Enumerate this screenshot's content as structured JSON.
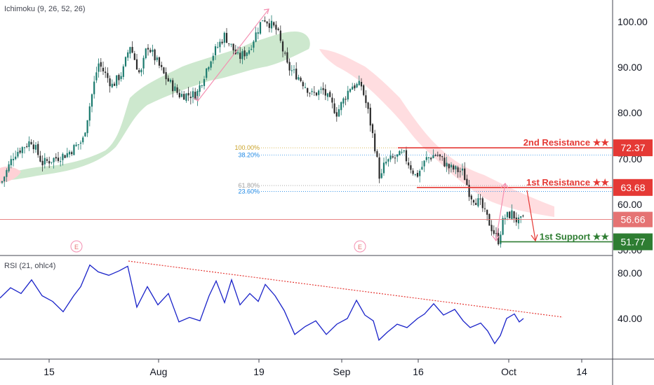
{
  "chart_data": [
    {
      "type": "candlestick",
      "pane": "price",
      "indicator_label": "Ichimoku (9, 26, 52, 26)",
      "yaxis": {
        "ticks": [
          "100.00",
          "90.00",
          "80.00",
          "70.00",
          "60.00",
          "50.00"
        ],
        "range": [
          50,
          104
        ]
      },
      "xaxis": {
        "ticks": [
          "15",
          "Aug",
          "19",
          "Sep",
          "16",
          "Oct",
          "14"
        ]
      },
      "anchors": [
        {
          "x": 0,
          "y": 64
        },
        {
          "x": 20,
          "y": 71
        },
        {
          "x": 45,
          "y": 74
        },
        {
          "x": 60,
          "y": 69
        },
        {
          "x": 95,
          "y": 71
        },
        {
          "x": 118,
          "y": 74
        },
        {
          "x": 140,
          "y": 91
        },
        {
          "x": 160,
          "y": 86
        },
        {
          "x": 175,
          "y": 89
        },
        {
          "x": 185,
          "y": 95
        },
        {
          "x": 200,
          "y": 88
        },
        {
          "x": 210,
          "y": 95
        },
        {
          "x": 235,
          "y": 88
        },
        {
          "x": 255,
          "y": 84
        },
        {
          "x": 280,
          "y": 84
        },
        {
          "x": 300,
          "y": 92
        },
        {
          "x": 320,
          "y": 97
        },
        {
          "x": 340,
          "y": 92
        },
        {
          "x": 355,
          "y": 94
        },
        {
          "x": 375,
          "y": 101
        },
        {
          "x": 395,
          "y": 98
        },
        {
          "x": 410,
          "y": 90
        },
        {
          "x": 425,
          "y": 88
        },
        {
          "x": 445,
          "y": 84
        },
        {
          "x": 460,
          "y": 85
        },
        {
          "x": 480,
          "y": 80
        },
        {
          "x": 500,
          "y": 86
        },
        {
          "x": 515,
          "y": 86
        },
        {
          "x": 525,
          "y": 80
        },
        {
          "x": 535,
          "y": 72
        },
        {
          "x": 542,
          "y": 65
        },
        {
          "x": 548,
          "y": 69
        },
        {
          "x": 560,
          "y": 70
        },
        {
          "x": 575,
          "y": 71
        },
        {
          "x": 593,
          "y": 66
        },
        {
          "x": 608,
          "y": 70
        },
        {
          "x": 622,
          "y": 71
        },
        {
          "x": 640,
          "y": 68
        },
        {
          "x": 660,
          "y": 67
        },
        {
          "x": 670,
          "y": 62
        },
        {
          "x": 685,
          "y": 60
        },
        {
          "x": 700,
          "y": 55
        },
        {
          "x": 710,
          "y": 52
        },
        {
          "x": 718,
          "y": 57
        },
        {
          "x": 730,
          "y": 58
        },
        {
          "x": 738,
          "y": 56
        },
        {
          "x": 746,
          "y": 56.6
        }
      ],
      "levels": [
        {
          "label": "2nd Resistance ★★",
          "value": "72.37",
          "color": "#e53935"
        },
        {
          "label": "1st Resistance ★★",
          "value": "63.68",
          "color": "#e53935"
        },
        {
          "label": "1st Support ★★",
          "value": "51.77",
          "color": "#2e7d32"
        }
      ],
      "current_price": {
        "value": "56.66",
        "color": "#e57373"
      },
      "fibonacci": [
        {
          "label": "100.00%",
          "value": 72.37,
          "color": "#c9a227"
        },
        {
          "label": "38.20%",
          "value": 70.8,
          "color": "#1e88e5"
        },
        {
          "label": "61.80%",
          "value": 64.1,
          "color": "#9e9e9e"
        },
        {
          "label": "23.60%",
          "value": 62.8,
          "color": "#1e88e5"
        }
      ],
      "events": [
        "E",
        "E"
      ]
    },
    {
      "type": "line",
      "pane": "rsi",
      "indicator_label": "RSI (21, ohlc4)",
      "yaxis": {
        "ticks": [
          "80.00",
          "40.00"
        ],
        "range": [
          12,
          92
        ]
      },
      "series": [
        {
          "color": "#1a23c9",
          "values": [
            {
              "x": 0,
              "y": 58
            },
            {
              "x": 15,
              "y": 67
            },
            {
              "x": 30,
              "y": 62
            },
            {
              "x": 45,
              "y": 74
            },
            {
              "x": 60,
              "y": 60
            },
            {
              "x": 75,
              "y": 55
            },
            {
              "x": 90,
              "y": 46
            },
            {
              "x": 105,
              "y": 60
            },
            {
              "x": 115,
              "y": 68
            },
            {
              "x": 128,
              "y": 87
            },
            {
              "x": 140,
              "y": 81
            },
            {
              "x": 155,
              "y": 78
            },
            {
              "x": 170,
              "y": 82
            },
            {
              "x": 182,
              "y": 86
            },
            {
              "x": 195,
              "y": 50
            },
            {
              "x": 210,
              "y": 68
            },
            {
              "x": 225,
              "y": 52
            },
            {
              "x": 240,
              "y": 62
            },
            {
              "x": 255,
              "y": 37
            },
            {
              "x": 270,
              "y": 41
            },
            {
              "x": 285,
              "y": 38
            },
            {
              "x": 298,
              "y": 60
            },
            {
              "x": 308,
              "y": 73
            },
            {
              "x": 320,
              "y": 54
            },
            {
              "x": 330,
              "y": 74
            },
            {
              "x": 342,
              "y": 52
            },
            {
              "x": 356,
              "y": 62
            },
            {
              "x": 368,
              "y": 55
            },
            {
              "x": 378,
              "y": 70
            },
            {
              "x": 392,
              "y": 60
            },
            {
              "x": 405,
              "y": 47
            },
            {
              "x": 420,
              "y": 26
            },
            {
              "x": 435,
              "y": 33
            },
            {
              "x": 450,
              "y": 38
            },
            {
              "x": 465,
              "y": 26
            },
            {
              "x": 480,
              "y": 35
            },
            {
              "x": 495,
              "y": 40
            },
            {
              "x": 508,
              "y": 56
            },
            {
              "x": 520,
              "y": 43
            },
            {
              "x": 532,
              "y": 38
            },
            {
              "x": 540,
              "y": 21
            },
            {
              "x": 552,
              "y": 28
            },
            {
              "x": 566,
              "y": 35
            },
            {
              "x": 580,
              "y": 32
            },
            {
              "x": 595,
              "y": 40
            },
            {
              "x": 605,
              "y": 44
            },
            {
              "x": 618,
              "y": 53
            },
            {
              "x": 632,
              "y": 43
            },
            {
              "x": 648,
              "y": 48
            },
            {
              "x": 660,
              "y": 38
            },
            {
              "x": 670,
              "y": 32
            },
            {
              "x": 685,
              "y": 36
            },
            {
              "x": 695,
              "y": 29
            },
            {
              "x": 705,
              "y": 18
            },
            {
              "x": 713,
              "y": 25
            },
            {
              "x": 722,
              "y": 40
            },
            {
              "x": 733,
              "y": 44
            },
            {
              "x": 740,
              "y": 37
            },
            {
              "x": 746,
              "y": 40
            }
          ]
        }
      ],
      "trendline_color": "#e53935"
    }
  ]
}
